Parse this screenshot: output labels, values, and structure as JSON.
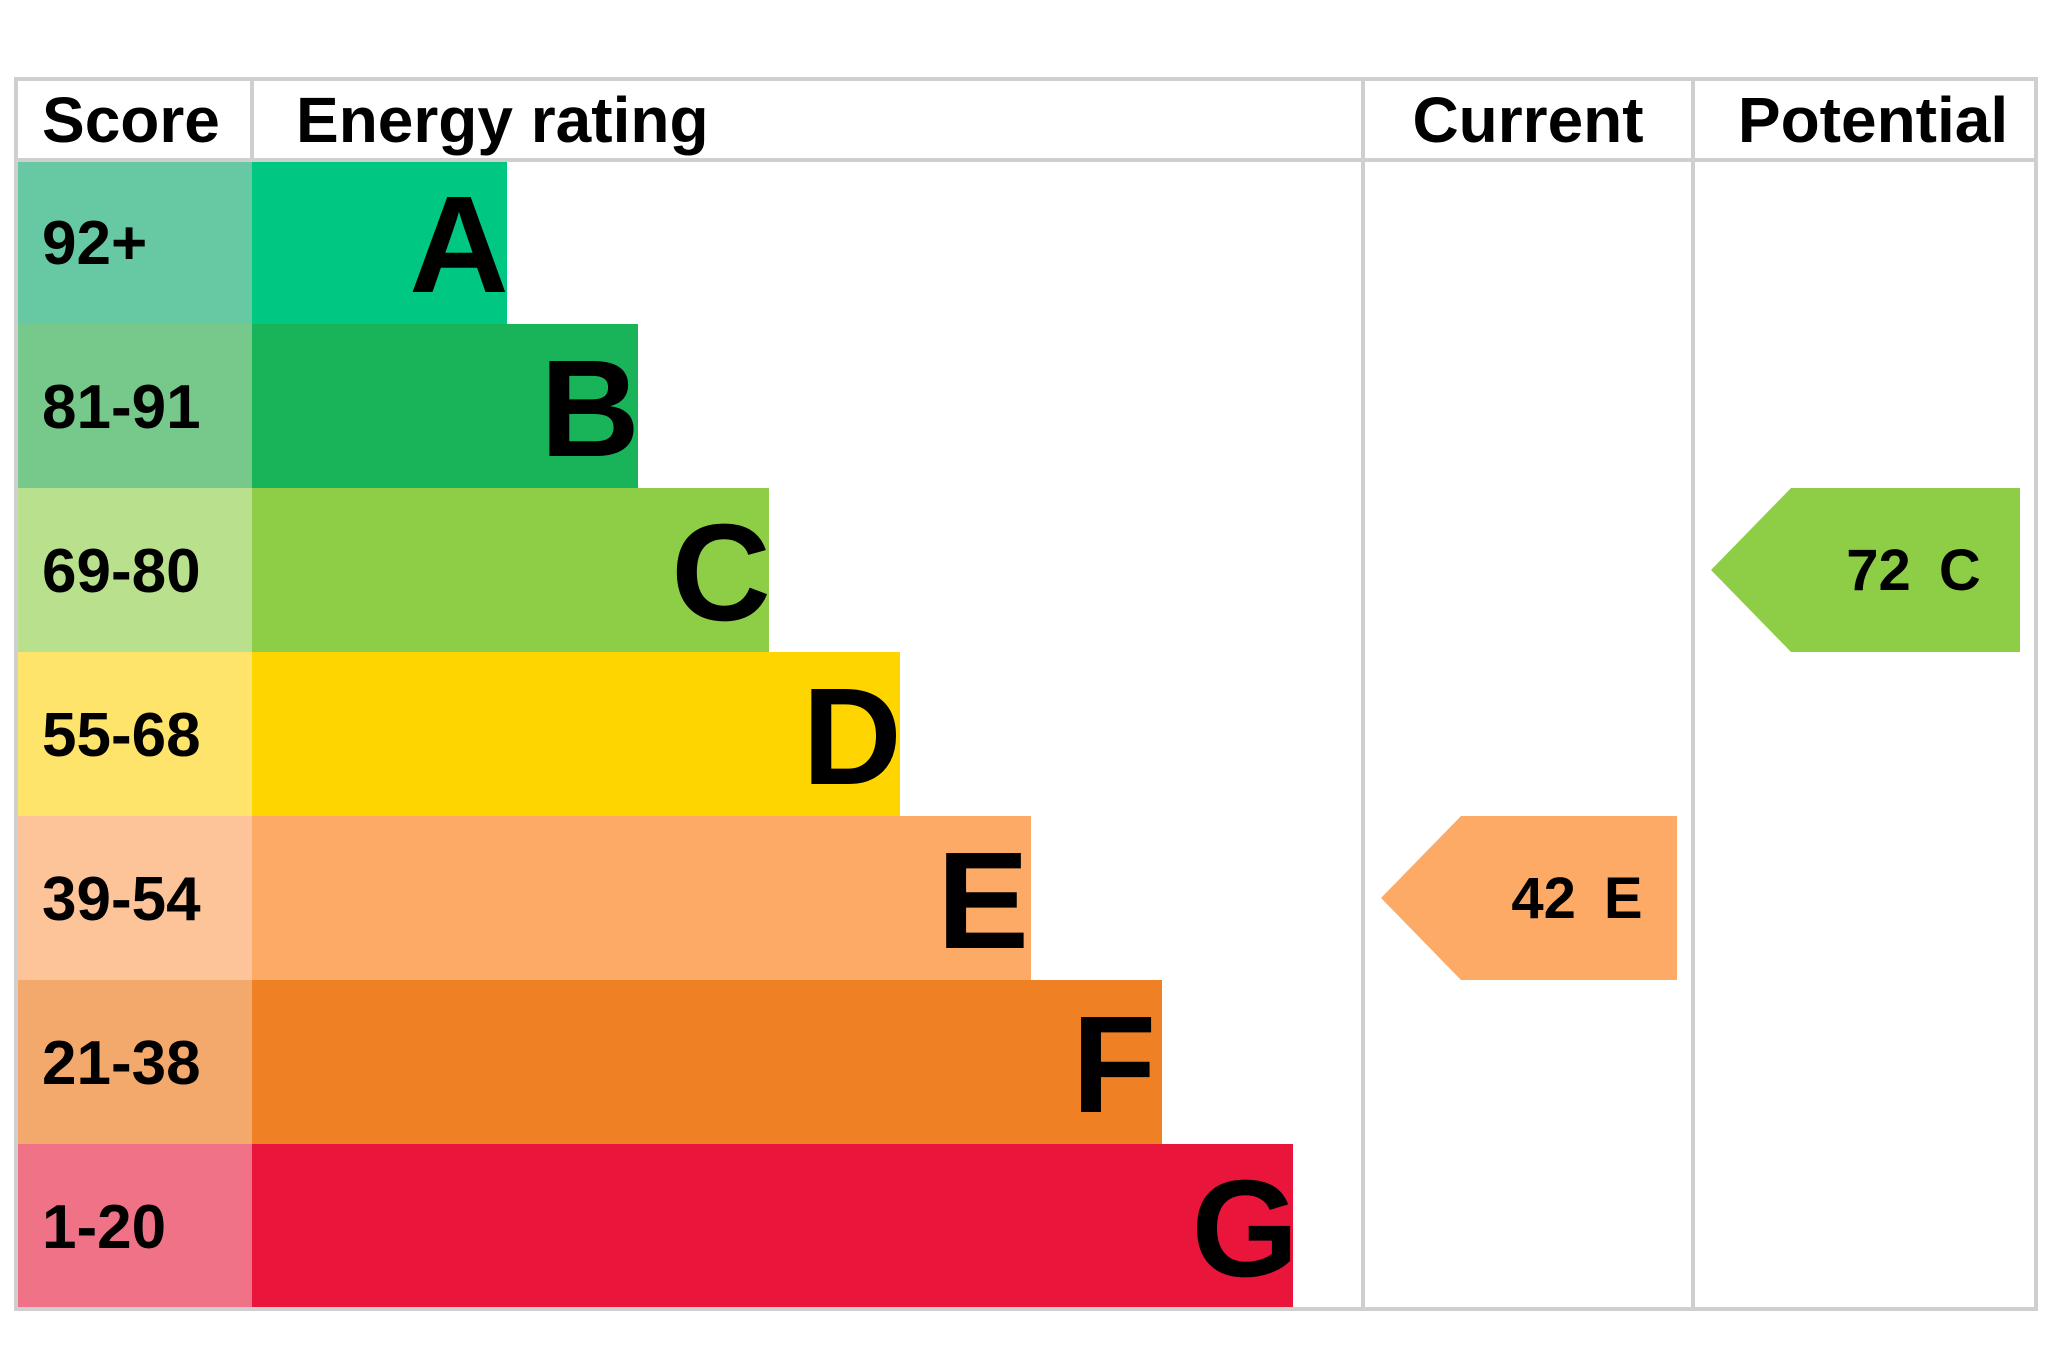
{
  "chart_data": {
    "type": "bar",
    "headers": {
      "score": "Score",
      "rating": "Energy rating",
      "current": "Current",
      "potential": "Potential"
    },
    "bands": [
      {
        "letter": "A",
        "score": "92+",
        "color": "#00c781",
        "score_color": "#66c9a4"
      },
      {
        "letter": "B",
        "score": "81-91",
        "color": "#19b459",
        "score_color": "#76c98b"
      },
      {
        "letter": "C",
        "score": "69-80",
        "color": "#8dce46",
        "score_color": "#b9e08d"
      },
      {
        "letter": "D",
        "score": "55-68",
        "color": "#ffd500",
        "score_color": "#ffe46b"
      },
      {
        "letter": "E",
        "score": "39-54",
        "color": "#fcaa65",
        "score_color": "#fdc49a"
      },
      {
        "letter": "F",
        "score": "21-38",
        "color": "#ef8023",
        "score_color": "#f3a96c"
      },
      {
        "letter": "G",
        "score": "1-20",
        "color": "#e9153b",
        "score_color": "#f07287"
      }
    ],
    "current": {
      "value": 42,
      "band": "E",
      "color": "#fcaa65"
    },
    "potential": {
      "value": 72,
      "band": "C",
      "color": "#8dce46"
    }
  }
}
